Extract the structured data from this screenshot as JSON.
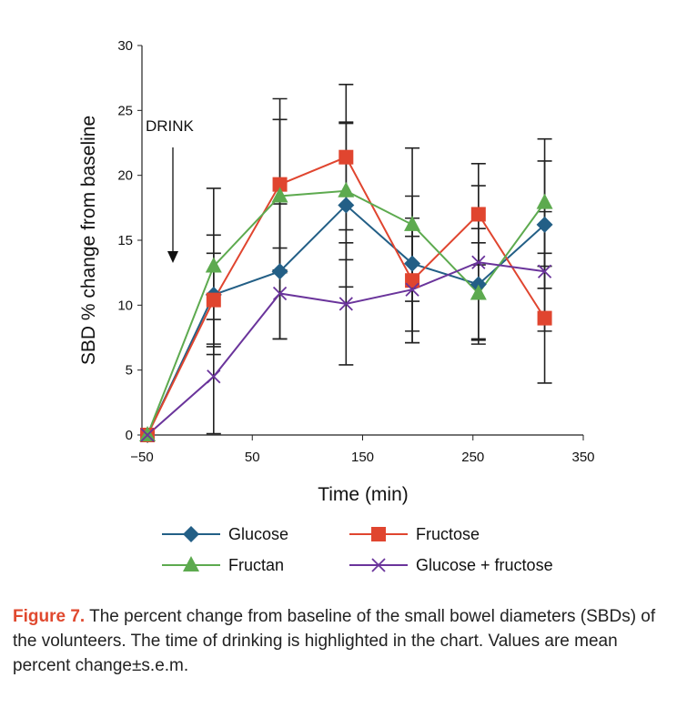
{
  "chart_data": {
    "type": "line",
    "xlabel": "Time (min)",
    "ylabel": "SBD % change from baseline",
    "xlim": [
      -50,
      350
    ],
    "ylim": [
      0,
      30
    ],
    "xticks": [
      -50,
      50,
      150,
      250,
      350
    ],
    "yticks": [
      0,
      5,
      10,
      15,
      20,
      25,
      30
    ],
    "grid": false,
    "legend_position": "bottom",
    "annotation": {
      "text": "DRINK",
      "x": -25
    },
    "x": [
      -45,
      15,
      75,
      135,
      195,
      255,
      315
    ],
    "series": [
      {
        "name": "Glucose",
        "color": "#235f86",
        "marker": "diamond",
        "values": [
          0,
          10.8,
          12.6,
          17.7,
          13.2,
          11.6,
          16.2
        ],
        "errors": [
          0,
          4.6,
          5.2,
          6.3,
          5.2,
          4.3,
          4.9
        ]
      },
      {
        "name": "Fructose",
        "color": "#e0452f",
        "marker": "square",
        "values": [
          0,
          10.4,
          19.3,
          21.4,
          11.9,
          17.0,
          9.0
        ],
        "errors": [
          0,
          3.6,
          6.6,
          5.6,
          4.8,
          3.9,
          5.0
        ]
      },
      {
        "name": "Fructan",
        "color": "#5daa4f",
        "marker": "triangle",
        "values": [
          0,
          13.0,
          18.4,
          18.8,
          16.2,
          10.9,
          17.9
        ],
        "errors": [
          0,
          6.0,
          5.9,
          5.3,
          5.9,
          3.9,
          4.9
        ]
      },
      {
        "name": "Glucose + fructose",
        "color": "#6a349b",
        "marker": "x",
        "values": [
          0,
          4.5,
          10.9,
          10.1,
          11.2,
          13.3,
          12.6
        ],
        "errors": [
          0,
          4.4,
          3.5,
          4.7,
          4.1,
          5.9,
          4.6
        ]
      }
    ]
  },
  "caption": {
    "label": "Figure 7.",
    "text": " The percent change from baseline of the small bowel diameters (SBDs) of the volunteers. The time of drinking is highlighted in the chart. Values are mean percent change±s.e.m."
  }
}
